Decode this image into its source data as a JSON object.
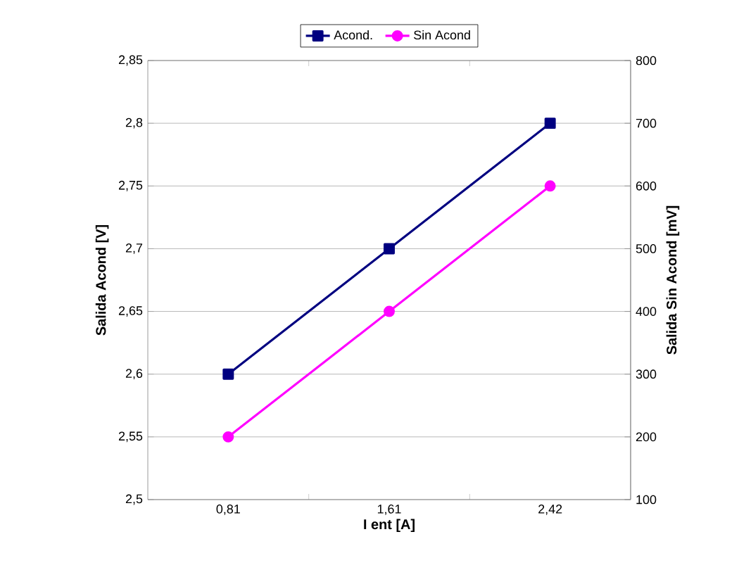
{
  "chart_data": {
    "type": "line",
    "xlabel": "I ent [A]",
    "ylabel": "Salida Acond [V]",
    "y2label": "Salida Sin Acond [mV]",
    "categories": [
      "0,81",
      "1,61",
      "2,42"
    ],
    "series": [
      {
        "name": "Acond.",
        "color": "#000080",
        "marker": "square",
        "values": [
          2.6,
          2.7,
          2.8
        ]
      },
      {
        "name": "Sin Acond",
        "color": "#ff00ff",
        "marker": "circle",
        "axis": "y2",
        "values": [
          200,
          400,
          600
        ]
      }
    ],
    "ylim": [
      2.5,
      2.85
    ],
    "yticks": [
      {
        "value": 2.5,
        "label": "2,5"
      },
      {
        "value": 2.55,
        "label": "2,55"
      },
      {
        "value": 2.6,
        "label": "2,6"
      },
      {
        "value": 2.65,
        "label": "2,65"
      },
      {
        "value": 2.7,
        "label": "2,7"
      },
      {
        "value": 2.75,
        "label": "2,75"
      },
      {
        "value": 2.8,
        "label": "2,8"
      },
      {
        "value": 2.85,
        "label": "2,85"
      }
    ],
    "y2lim": [
      100,
      800
    ],
    "y2ticks": [
      100,
      200,
      300,
      400,
      500,
      600,
      700,
      800
    ],
    "grid": "y",
    "legend": "top",
    "line_style": "solid"
  }
}
